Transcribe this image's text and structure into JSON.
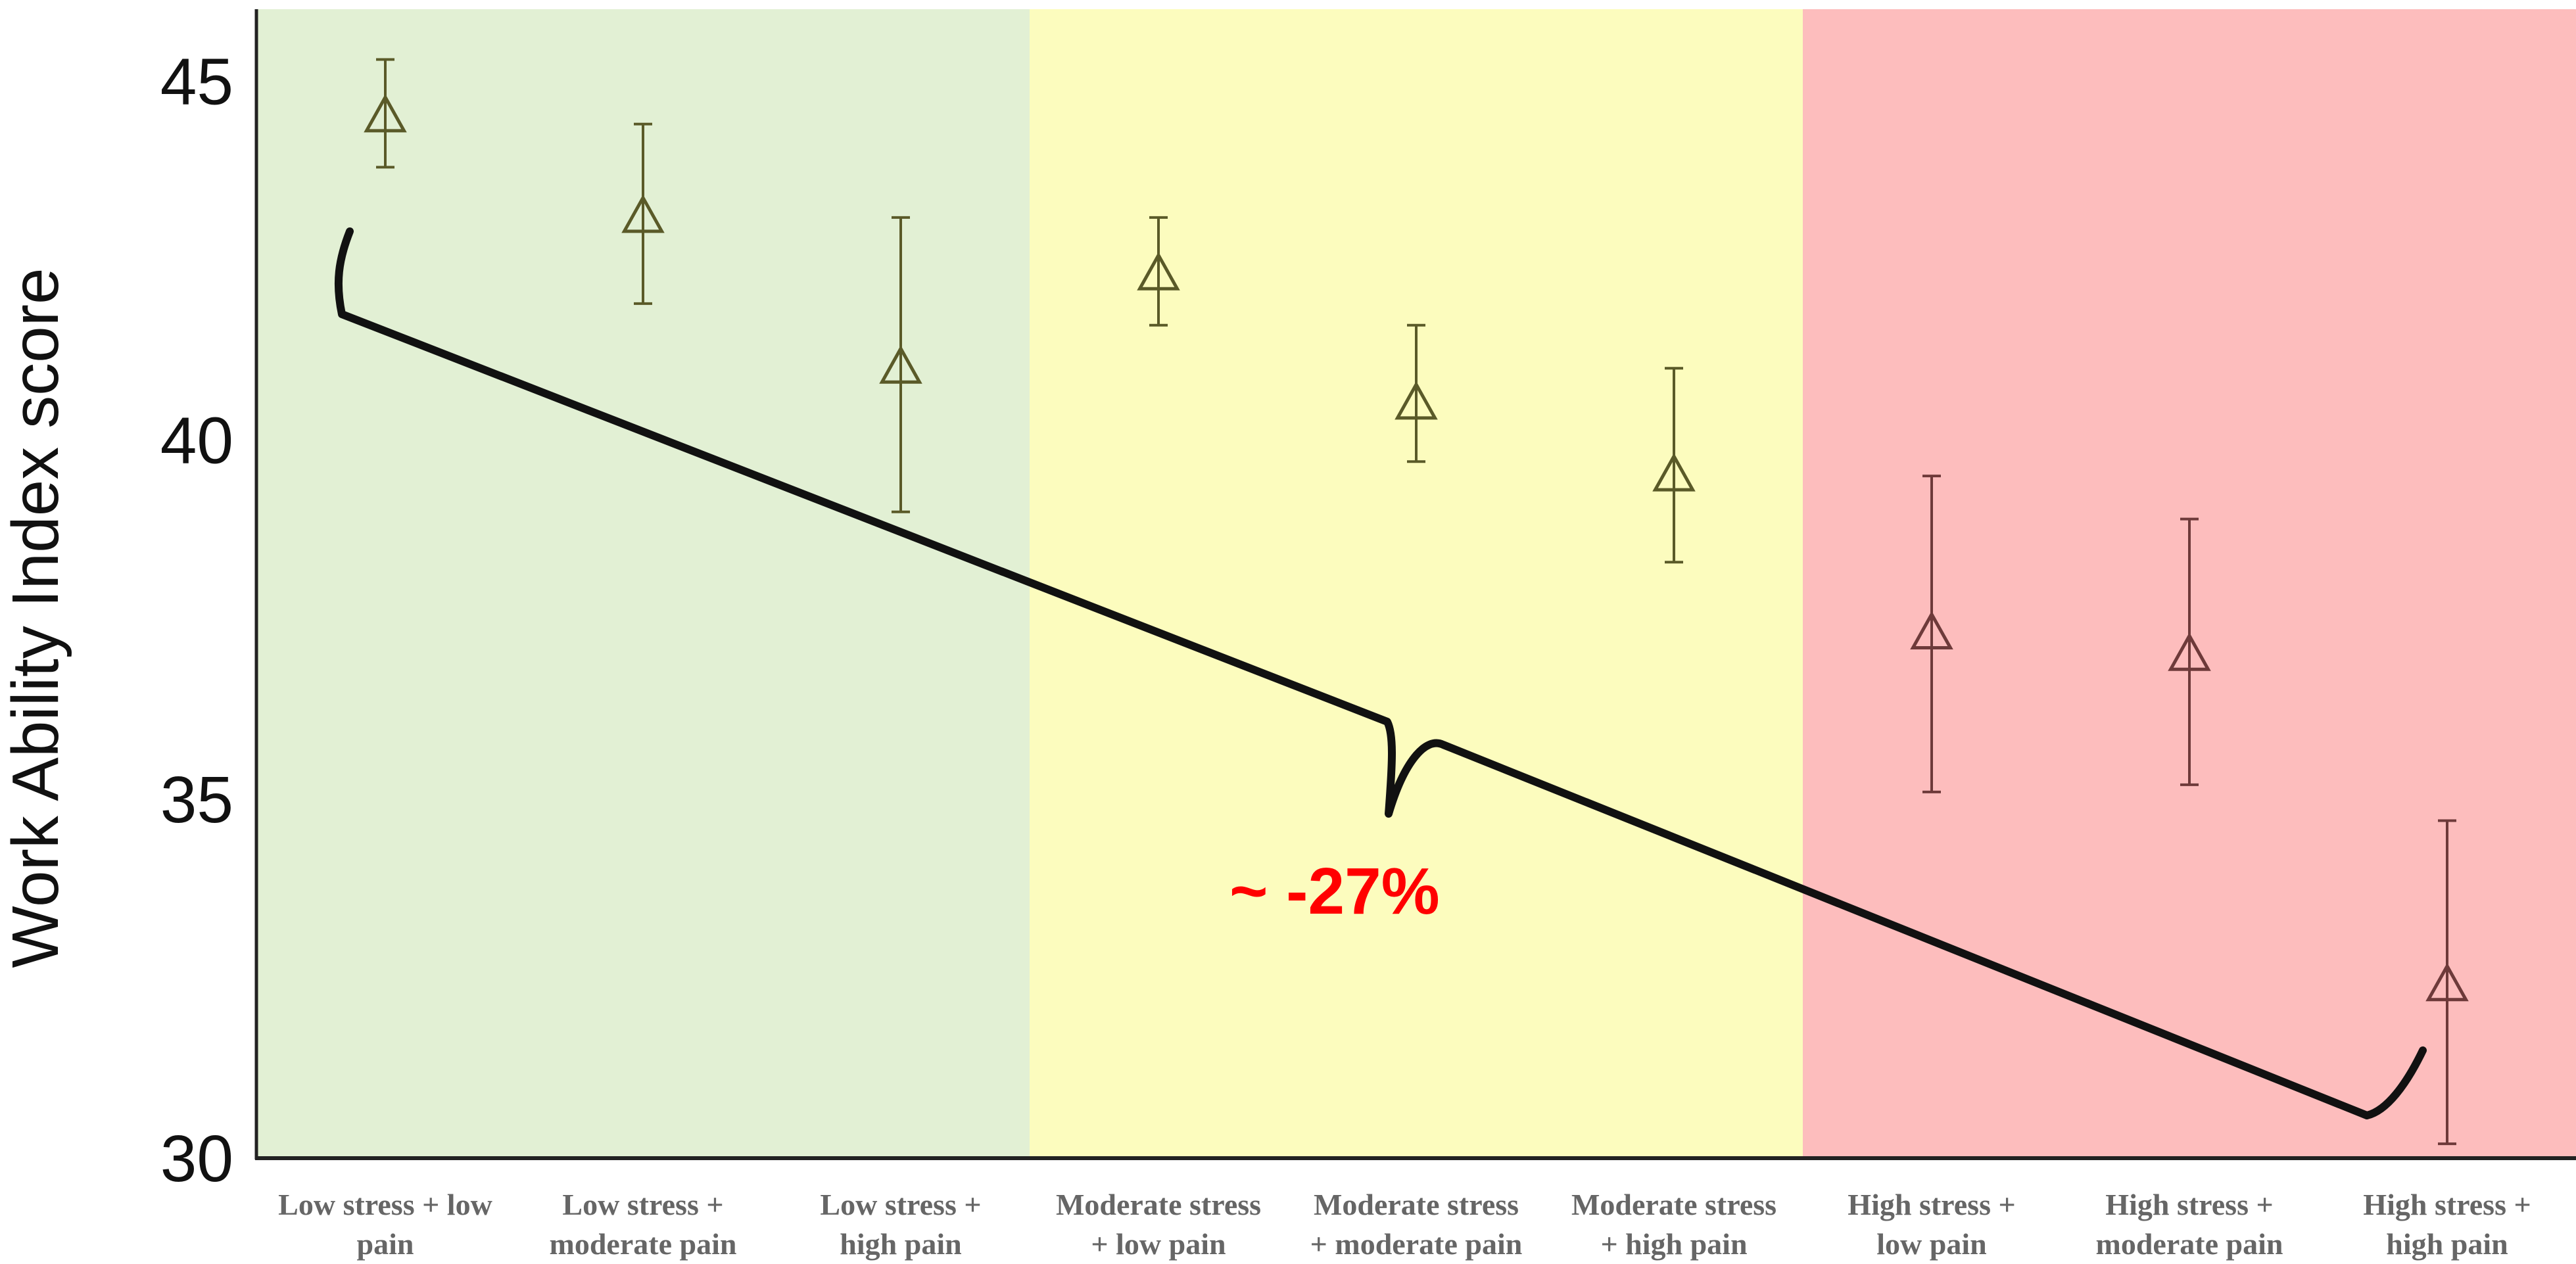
{
  "chart_data": {
    "type": "scatter",
    "title": "",
    "xlabel": "",
    "ylabel": "Work Ability Index score",
    "ylim": [
      30,
      46
    ],
    "yticks": [
      30,
      35,
      40,
      45
    ],
    "grid": false,
    "categories": [
      [
        "Low stress + low",
        "pain"
      ],
      [
        "Low stress +",
        "moderate pain"
      ],
      [
        "Low stress +",
        "high pain"
      ],
      [
        "Moderate stress",
        "+ low pain"
      ],
      [
        "Moderate stress",
        "+ moderate pain"
      ],
      [
        "Moderate stress",
        "+ high pain"
      ],
      [
        "High stress +",
        "low pain"
      ],
      [
        "High stress +",
        "moderate pain"
      ],
      [
        "High stress +",
        "high pain"
      ]
    ],
    "series": [
      {
        "values": [
          44.5,
          43.1,
          41.0,
          42.3,
          40.5,
          39.5,
          37.3,
          37.0,
          32.4
        ],
        "error_low": [
          43.8,
          41.9,
          39.0,
          41.6,
          39.7,
          38.3,
          35.1,
          35.2,
          30.2
        ],
        "error_high": [
          45.3,
          44.4,
          43.1,
          43.1,
          41.6,
          41.0,
          39.5,
          38.9,
          34.7
        ]
      }
    ],
    "bands": [
      {
        "from": 0,
        "to": 2,
        "color": "#e2f0d4"
      },
      {
        "from": 3,
        "to": 5,
        "color": "#fcfcbe"
      },
      {
        "from": 6,
        "to": 8,
        "color": "#fdbdbd"
      }
    ],
    "annotation": {
      "text": "~ -27%",
      "color": "#ff0000"
    }
  }
}
